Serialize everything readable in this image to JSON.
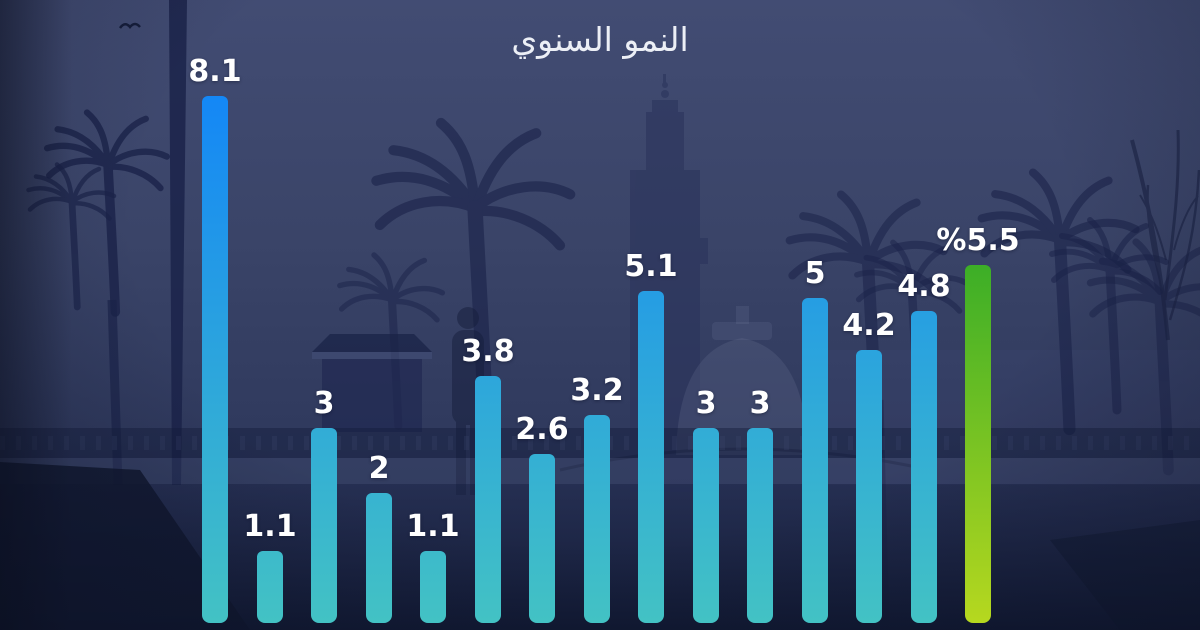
{
  "title": "النمو السنوي",
  "chart_data": {
    "type": "bar",
    "title": "النمو السنوي",
    "values": [
      8.1,
      1.1,
      3,
      2,
      1.1,
      3.8,
      2.6,
      3.2,
      5.1,
      3,
      3,
      5,
      4.2,
      4.8,
      5.5
    ],
    "bar_labels": [
      "8.1",
      "1.1",
      "3",
      "2",
      "1.1",
      "3.8",
      "2.6",
      "3.2",
      "5.1",
      "3",
      "3",
      "5",
      "4.2",
      "4.8",
      "%5.5"
    ],
    "highlight_index": 14,
    "unit": "%",
    "xlabel": "",
    "ylabel": "",
    "ylim": [
      0,
      8.5
    ],
    "grid": false,
    "axes_visible": false,
    "legend": null,
    "bar_color_top": "#1487f6",
    "bar_color_bottom": "#43c2c4",
    "highlight_color_top": "#3cae27",
    "highlight_color_bottom": "#b6d81f",
    "label_color": "#ffffff"
  },
  "background": {
    "sky_top": "#424c73",
    "sky_bottom": "#232c4c",
    "silhouette_color": "#1b234a"
  }
}
